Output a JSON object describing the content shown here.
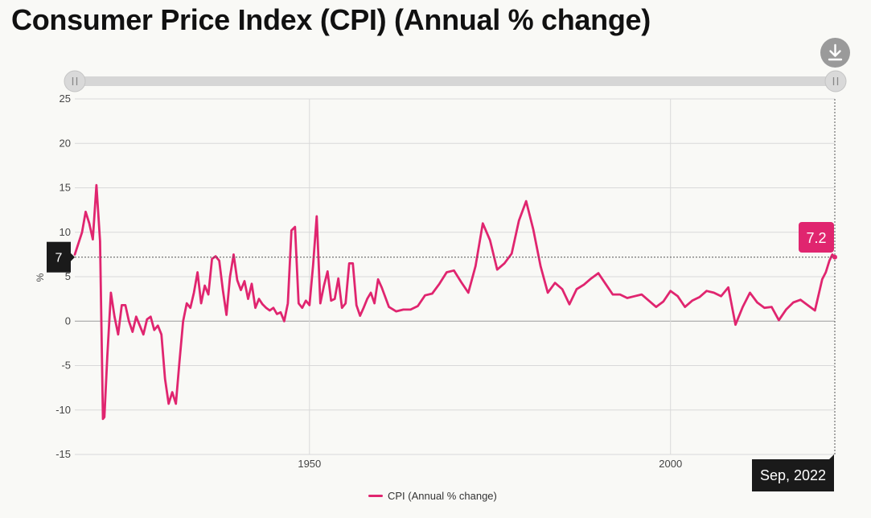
{
  "title": "Consumer Price Index (CPI) (Annual % change)",
  "download_icon": "download-icon",
  "colors": {
    "series": "#e0256f",
    "grid": "#d9d9d9",
    "slider": "#d6d6d6",
    "tooltip": "#1a1a1a",
    "background": "#f9f9f6"
  },
  "crosshair": {
    "y_label": "7",
    "value_label": "7.2",
    "date_label": "Sep, 2022"
  },
  "chart_data": {
    "type": "line",
    "title": "Consumer Price Index (CPI) (Annual % change)",
    "xlabel": "",
    "ylabel": "%",
    "ylim": [
      -15,
      25
    ],
    "xlim": [
      1917.5,
      2022.75
    ],
    "yticks": [
      25,
      20,
      15,
      10,
      5,
      0,
      -5,
      -10,
      -15
    ],
    "ytick_labels": [
      "25",
      "20",
      "15",
      "10",
      "5",
      "0",
      "-5",
      "-10",
      "-15"
    ],
    "xticks": [
      1950,
      2000
    ],
    "xtick_labels": [
      "1950",
      "2000"
    ],
    "grid": true,
    "legend": "bottom-center",
    "series": [
      {
        "name": "CPI (Annual % change)",
        "x": [
          1917.5,
          1918.5,
          1919,
          1919.5,
          1920,
          1920.5,
          1921,
          1921.4,
          1921.6,
          1922,
          1922.5,
          1923,
          1923.5,
          1924,
          1924.5,
          1925,
          1925.5,
          1926,
          1926.5,
          1927,
          1927.5,
          1928,
          1928.5,
          1929,
          1929.5,
          1930,
          1930.5,
          1931,
          1931.5,
          1932,
          1932.5,
          1933,
          1933.5,
          1934,
          1934.5,
          1935,
          1935.5,
          1936,
          1936.5,
          1937,
          1937.5,
          1938,
          1938.5,
          1939,
          1939.5,
          1940,
          1940.5,
          1941,
          1941.5,
          1942,
          1942.5,
          1943,
          1943.5,
          1944,
          1944.5,
          1945,
          1945.5,
          1946,
          1946.5,
          1947,
          1947.5,
          1948,
          1948.5,
          1949,
          1949.5,
          1950,
          1950.5,
          1951,
          1951.5,
          1952,
          1952.5,
          1953,
          1953.5,
          1954,
          1954.5,
          1955,
          1955.5,
          1956,
          1956.5,
          1957,
          1957.5,
          1958,
          1958.5,
          1959,
          1959.5,
          1960,
          1961,
          1962,
          1963,
          1964,
          1965,
          1966,
          1967,
          1968,
          1969,
          1970,
          1971,
          1972,
          1973,
          1974,
          1975,
          1976,
          1977,
          1978,
          1979,
          1980,
          1981,
          1982,
          1983,
          1984,
          1985,
          1986,
          1987,
          1988,
          1989,
          1990,
          1991,
          1992,
          1993,
          1994,
          1995,
          1996,
          1997,
          1998,
          1999,
          2000,
          2001,
          2002,
          2003,
          2004,
          2005,
          2006,
          2007,
          2008,
          2009,
          2010,
          2011,
          2012,
          2013,
          2014,
          2015,
          2016,
          2017,
          2018,
          2019,
          2020,
          2021,
          2021.5,
          2022,
          2022.4,
          2022.75
        ],
        "values": [
          7.5,
          10,
          12.3,
          11,
          9.2,
          15.3,
          9,
          -11,
          -10.8,
          -4,
          3.2,
          0.5,
          -1.5,
          1.8,
          1.8,
          0,
          -1.2,
          0.5,
          -0.5,
          -1.5,
          0.2,
          0.5,
          -1,
          -0.5,
          -1.5,
          -6.5,
          -9.3,
          -8,
          -9.3,
          -4.5,
          0,
          2,
          1.5,
          3.2,
          5.5,
          2,
          4,
          3,
          7,
          7.3,
          6.8,
          3.5,
          0.7,
          5,
          7.5,
          4.6,
          3.5,
          4.5,
          2.5,
          4.2,
          1.5,
          2.5,
          1.9,
          1.5,
          1.2,
          1.5,
          0.8,
          1,
          0,
          2,
          10.2,
          10.6,
          2,
          1.5,
          2.3,
          1.8,
          6.3,
          11.8,
          2,
          4,
          5.6,
          2.3,
          2.5,
          4.8,
          1.5,
          2,
          6.5,
          6.5,
          1.8,
          0.6,
          1.5,
          2.5,
          3.2,
          2,
          4.7,
          3.8,
          1.6,
          1.1,
          1.3,
          1.3,
          1.7,
          2.9,
          3.1,
          4.2,
          5.5,
          5.7,
          4.4,
          3.2,
          6.2,
          11,
          9.1,
          5.8,
          6.5,
          7.6,
          11.3,
          13.5,
          10.3,
          6.2,
          3.2,
          4.3,
          3.6,
          1.9,
          3.6,
          4.1,
          4.8,
          5.4,
          4.2,
          3,
          3,
          2.6,
          2.8,
          3,
          2.3,
          1.6,
          2.2,
          3.4,
          2.8,
          1.6,
          2.3,
          2.7,
          3.4,
          3.2,
          2.8,
          3.8,
          -0.4,
          1.6,
          3.2,
          2.1,
          1.5,
          1.6,
          0.1,
          1.3,
          2.1,
          2.4,
          1.8,
          1.2,
          4.7,
          5.5,
          6.8,
          7.5,
          7.2
        ]
      }
    ]
  },
  "legend": {
    "label": "CPI (Annual % change)"
  }
}
